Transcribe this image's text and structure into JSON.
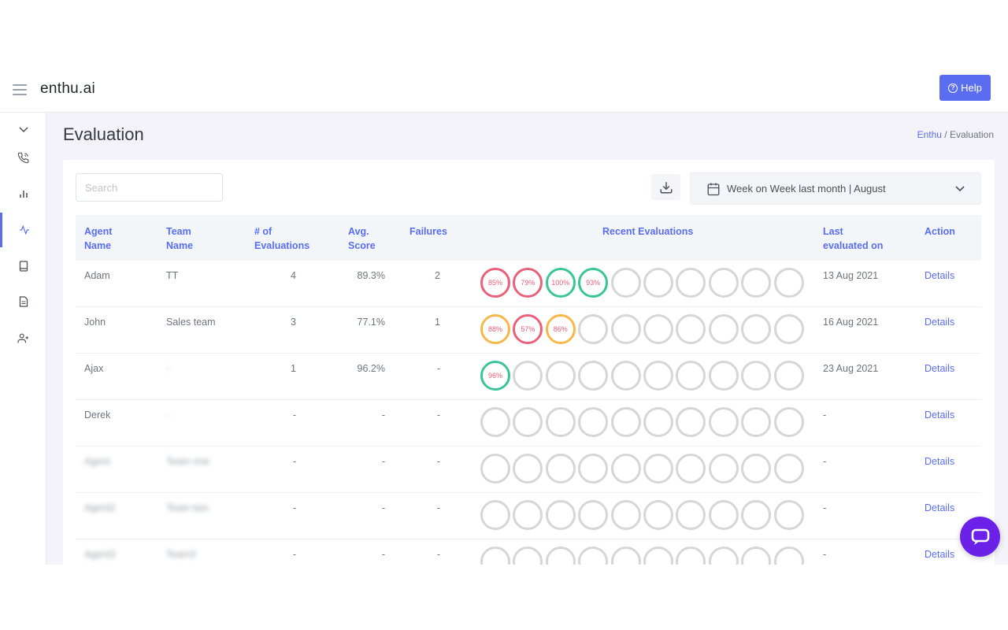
{
  "header": {
    "brand": "enthu.ai",
    "help_label": "Help"
  },
  "page": {
    "title": "Evaluation",
    "breadcrumb": [
      "Enthu",
      "Evaluation"
    ],
    "breadcrumb_sep": "/"
  },
  "sidebar": {
    "items": [
      {
        "icon": "chevron-down-icon"
      },
      {
        "icon": "phone-icon"
      },
      {
        "icon": "bar-chart-icon"
      },
      {
        "icon": "activity-icon",
        "active": true
      },
      {
        "icon": "book-icon"
      },
      {
        "icon": "document-icon"
      },
      {
        "icon": "user-plus-icon"
      }
    ]
  },
  "toolbar": {
    "search_placeholder": "Search",
    "date_range": "Week on Week last month | August"
  },
  "table": {
    "headers": {
      "agent": [
        "Agent",
        "Name"
      ],
      "team": [
        "Team",
        "Name"
      ],
      "evals": [
        "# of",
        "Evaluations"
      ],
      "avg": [
        "Avg.",
        "Score"
      ],
      "failures": "Failures",
      "recent": "Recent Evaluations",
      "last": [
        "Last",
        "evaluated on"
      ],
      "action": "Action"
    },
    "rows": [
      {
        "agent": "Adam",
        "team": "TT",
        "evals": "4",
        "avg": "89.3%",
        "failures": "2",
        "recent": [
          {
            "v": "85%",
            "c": "red"
          },
          {
            "v": "79%",
            "c": "red"
          },
          {
            "v": "100%",
            "c": "green"
          },
          {
            "v": "93%",
            "c": "green"
          }
        ],
        "last": "13 Aug 2021",
        "action": "Details"
      },
      {
        "agent": "John",
        "team": "Sales team",
        "evals": "3",
        "avg": "77.1%",
        "failures": "1",
        "recent": [
          {
            "v": "88%",
            "c": "yellow"
          },
          {
            "v": "57%",
            "c": "red"
          },
          {
            "v": "86%",
            "c": "yellow"
          }
        ],
        "last": "16 Aug 2021",
        "action": "Details"
      },
      {
        "agent": "Ajax",
        "team": "-",
        "team_blur": true,
        "evals": "1",
        "avg": "96.2%",
        "failures": "-",
        "recent": [
          {
            "v": "96%",
            "c": "green"
          }
        ],
        "last": "23 Aug 2021",
        "action": "Details"
      },
      {
        "agent": "Derek",
        "team": "-",
        "team_blur": true,
        "evals": "-",
        "avg": "-",
        "failures": "-",
        "recent": [],
        "last": "-",
        "action": "Details"
      },
      {
        "agent": "Agent",
        "agent_blur": true,
        "team": "Team one",
        "team_blur": true,
        "evals": "-",
        "avg": "-",
        "failures": "-",
        "recent": [],
        "last": "-",
        "action": "Details"
      },
      {
        "agent": "Agent2",
        "agent_blur": true,
        "team": "Team two",
        "team_blur": true,
        "evals": "-",
        "avg": "-",
        "failures": "-",
        "recent": [],
        "last": "-",
        "action": "Details"
      },
      {
        "agent": "Agent3",
        "agent_blur": true,
        "team": "Team3",
        "team_blur": true,
        "evals": "-",
        "avg": "-",
        "failures": "-",
        "recent": [],
        "last": "-",
        "action": "Details"
      }
    ],
    "ring_slots": 10
  },
  "colors": {
    "accent": "#5a6df0",
    "red": "#e9607a",
    "yellow": "#f7b84b",
    "green": "#3ac497",
    "empty": "#d6d6d6",
    "chat": "#6b21e8"
  }
}
